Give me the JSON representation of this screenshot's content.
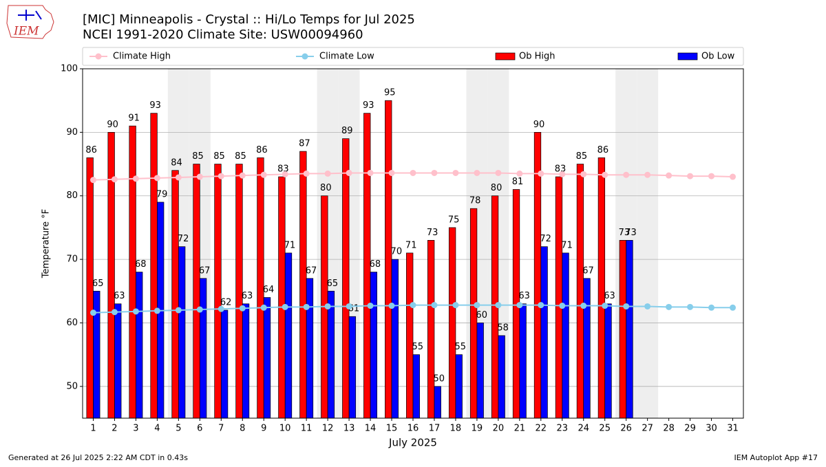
{
  "chart_data": {
    "type": "bar",
    "title": "[MIC] Minneapolis - Crystal :: Hi/Lo Temps for Jul 2025",
    "subtitle": "NCEI 1991-2020 Climate Site: USW00094960",
    "logo_text": "IEM",
    "ylabel": "Temperature °F",
    "xlabel": "July 2025",
    "footer_left": "Generated at 26 Jul 2025 2:22 AM CDT in 0.43s",
    "footer_right": "IEM Autoplot App #17",
    "categories": [
      "1",
      "2",
      "3",
      "4",
      "5",
      "6",
      "7",
      "8",
      "9",
      "10",
      "11",
      "12",
      "13",
      "14",
      "15",
      "16",
      "17",
      "18",
      "19",
      "20",
      "21",
      "22",
      "23",
      "24",
      "25",
      "26",
      "27",
      "28",
      "29",
      "30",
      "31"
    ],
    "highlight_categories": [
      4,
      5,
      11,
      12,
      18,
      19,
      25,
      26
    ],
    "ylim": [
      45,
      100
    ],
    "yticks": [
      50,
      60,
      70,
      80,
      90,
      100
    ],
    "grid": true,
    "series": [
      {
        "name": "Climate High",
        "kind": "line",
        "color": "#ffc0cb",
        "values": [
          82.5,
          82.6,
          82.7,
          82.8,
          82.9,
          83.0,
          83.1,
          83.2,
          83.3,
          83.4,
          83.5,
          83.5,
          83.6,
          83.6,
          83.6,
          83.6,
          83.6,
          83.6,
          83.6,
          83.6,
          83.5,
          83.5,
          83.4,
          83.4,
          83.3,
          83.3,
          83.3,
          83.2,
          83.1,
          83.1,
          83.0
        ]
      },
      {
        "name": "Climate Low",
        "kind": "line",
        "color": "#87ceeb",
        "values": [
          61.6,
          61.7,
          61.8,
          61.9,
          62.0,
          62.1,
          62.2,
          62.3,
          62.4,
          62.5,
          62.5,
          62.6,
          62.6,
          62.7,
          62.7,
          62.8,
          62.8,
          62.8,
          62.8,
          62.8,
          62.8,
          62.8,
          62.7,
          62.7,
          62.7,
          62.6,
          62.6,
          62.5,
          62.5,
          62.4,
          62.4
        ]
      },
      {
        "name": "Ob High",
        "kind": "bar",
        "color": "#ff0000",
        "values": [
          86,
          90,
          91,
          93,
          84,
          85,
          85,
          85,
          86,
          83,
          87,
          80,
          89,
          93,
          95,
          71,
          73,
          75,
          78,
          80,
          81,
          90,
          83,
          85,
          86,
          73,
          null,
          null,
          null,
          null,
          null
        ]
      },
      {
        "name": "Ob Low",
        "kind": "bar",
        "color": "#0000ff",
        "values": [
          65,
          63,
          68,
          79,
          72,
          67,
          62,
          63,
          64,
          71,
          67,
          65,
          61,
          68,
          70,
          55,
          50,
          55,
          60,
          58,
          63,
          72,
          71,
          67,
          63,
          73,
          null,
          null,
          null,
          null,
          null
        ]
      }
    ]
  }
}
